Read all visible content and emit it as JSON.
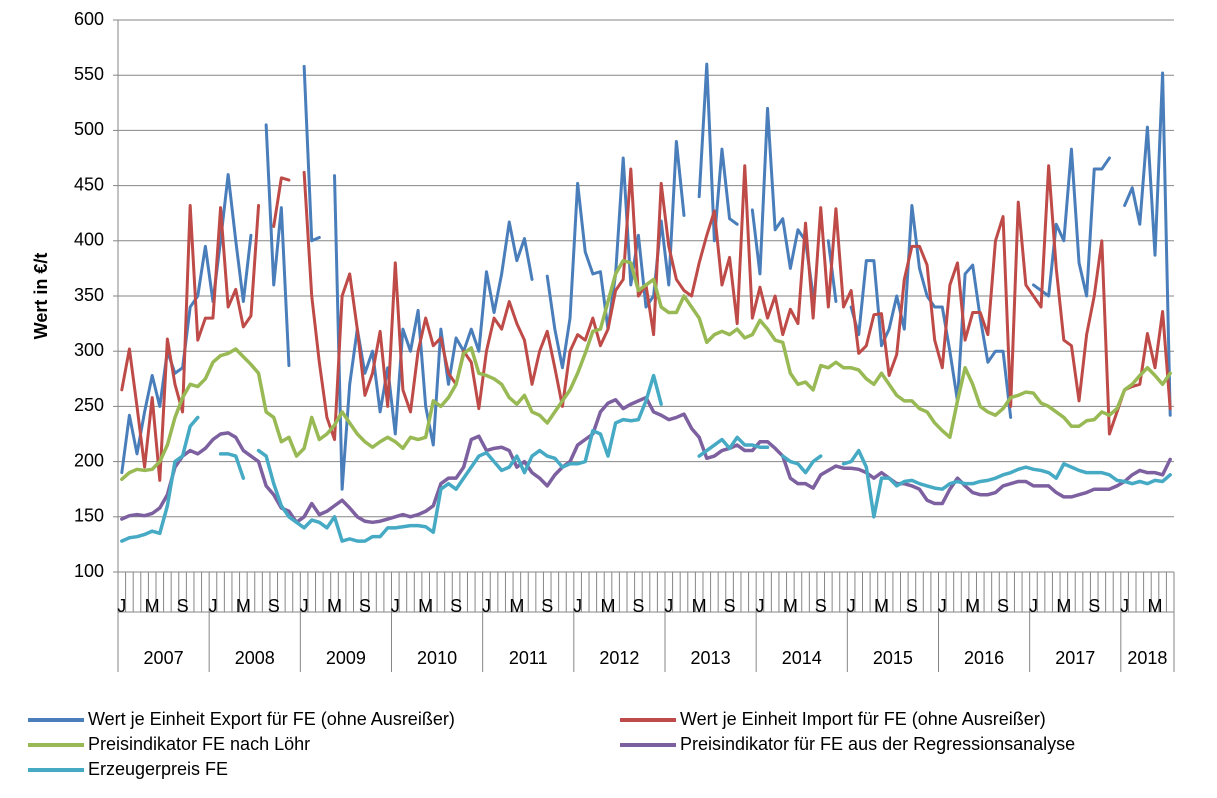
{
  "chart_data": {
    "type": "line",
    "y_label": "Wert  in €/t",
    "ylim": [
      100,
      600
    ],
    "yticks": [
      100,
      150,
      200,
      250,
      300,
      350,
      400,
      450,
      500,
      550,
      600
    ],
    "grid": true,
    "legend": "bottom",
    "categories": [
      "J",
      null,
      null,
      null,
      "M",
      null,
      null,
      null,
      "S",
      null,
      null,
      null,
      "J",
      null,
      null,
      null,
      "M",
      null,
      null,
      null,
      "S",
      null,
      null,
      null,
      "J",
      null,
      null,
      null,
      "M",
      null,
      null,
      null,
      "S",
      null,
      null,
      null,
      "J",
      null,
      null,
      null,
      "M",
      null,
      null,
      null,
      "S",
      null,
      null,
      null,
      "J",
      null,
      null,
      null,
      "M",
      null,
      null,
      null,
      "S",
      null,
      null,
      null,
      "J",
      null,
      null,
      null,
      "M",
      null,
      null,
      null,
      "S",
      null,
      null,
      null,
      "J",
      null,
      null,
      null,
      "M",
      null,
      null,
      null,
      "S",
      null,
      null,
      null,
      "J",
      null,
      null,
      null,
      "M",
      null,
      null,
      null,
      "S",
      null,
      null,
      null,
      "J",
      null,
      null,
      null,
      "M",
      null,
      null,
      null,
      "S",
      null,
      null,
      null,
      "J",
      null,
      null,
      null,
      "M",
      null,
      null,
      null,
      "S",
      null,
      null,
      null,
      "J",
      null,
      null,
      null,
      "M",
      null,
      null,
      null,
      "S",
      null,
      null,
      null,
      "J",
      null,
      null,
      null,
      "M",
      null,
      null
    ],
    "years": [
      "2007",
      "2008",
      "2009",
      "2010",
      "2011",
      "2012",
      "2013",
      "2014",
      "2015",
      "2016",
      "2017",
      "2018"
    ],
    "series": [
      {
        "name": "Wert je Einheit Export für FE (ohne Ausreißer)",
        "color": "#4a7ebb",
        "values": [
          190,
          242,
          207,
          245,
          278,
          250,
          300,
          280,
          285,
          340,
          350,
          395,
          345,
          400,
          460,
          400,
          345,
          405,
          null,
          505,
          360,
          430,
          287,
          null,
          558,
          400,
          403,
          null,
          459,
          175,
          270,
          320,
          280,
          300,
          245,
          285,
          225,
          320,
          300,
          337,
          250,
          215,
          320,
          270,
          312,
          300,
          320,
          300,
          372,
          335,
          370,
          417,
          382,
          402,
          365,
          null,
          368,
          320,
          285,
          330,
          452,
          390,
          370,
          372,
          320,
          370,
          475,
          360,
          405,
          340,
          350,
          418,
          360,
          490,
          423,
          null,
          440,
          560,
          400,
          483,
          420,
          415,
          null,
          428,
          370,
          520,
          410,
          420,
          375,
          410,
          400,
          350,
          null,
          400,
          345,
          null,
          340,
          315,
          382,
          382,
          305,
          320,
          350,
          320,
          432,
          375,
          350,
          340,
          340,
          300,
          255,
          370,
          378,
          330,
          290,
          300,
          300,
          240,
          null,
          null,
          360,
          355,
          350,
          415,
          400,
          483,
          380,
          350,
          465,
          465,
          475,
          null,
          432,
          448,
          415,
          503,
          387,
          552,
          242
        ]
      },
      {
        "name": "Wert je Einheit Import für FE (ohne Ausreißer)",
        "color": "#be4b48",
        "values": [
          265,
          302,
          250,
          195,
          258,
          183,
          311,
          270,
          245,
          432,
          310,
          330,
          330,
          430,
          340,
          356,
          322,
          332,
          432,
          null,
          413,
          457,
          455,
          null,
          462,
          350,
          290,
          240,
          220,
          350,
          370,
          320,
          260,
          280,
          318,
          250,
          380,
          265,
          245,
          300,
          330,
          305,
          312,
          280,
          270,
          300,
          290,
          248,
          300,
          330,
          320,
          345,
          325,
          310,
          270,
          300,
          318,
          285,
          250,
          300,
          315,
          310,
          330,
          305,
          320,
          355,
          365,
          465,
          350,
          360,
          315,
          452,
          395,
          365,
          355,
          350,
          380,
          405,
          427,
          360,
          385,
          325,
          468,
          330,
          358,
          330,
          350,
          315,
          338,
          325,
          416,
          330,
          430,
          340,
          429,
          340,
          355,
          298,
          305,
          333,
          334,
          278,
          297,
          365,
          395,
          395,
          378,
          310,
          285,
          360,
          380,
          310,
          335,
          335,
          315,
          400,
          422,
          250,
          435,
          360,
          350,
          340,
          468,
          375,
          310,
          305,
          255,
          315,
          350,
          400,
          225,
          245,
          265,
          268,
          270,
          316,
          285,
          336,
          248
        ]
      },
      {
        "name": "Preisindikator FE nach Löhr",
        "color": "#98b954",
        "values": [
          184,
          190,
          193,
          192,
          193,
          200,
          215,
          240,
          258,
          270,
          268,
          275,
          290,
          296,
          298,
          302,
          295,
          288,
          280,
          245,
          240,
          218,
          222,
          205,
          212,
          240,
          220,
          225,
          233,
          245,
          235,
          225,
          218,
          213,
          218,
          222,
          218,
          212,
          222,
          220,
          222,
          255,
          250,
          258,
          270,
          298,
          303,
          280,
          278,
          275,
          270,
          258,
          252,
          260,
          245,
          242,
          235,
          245,
          255,
          265,
          280,
          298,
          318,
          320,
          345,
          370,
          382,
          380,
          355,
          360,
          365,
          340,
          335,
          335,
          350,
          340,
          330,
          308,
          315,
          318,
          315,
          320,
          312,
          315,
          328,
          320,
          310,
          308,
          280,
          270,
          272,
          265,
          287,
          285,
          290,
          285,
          285,
          283,
          275,
          270,
          280,
          270,
          260,
          255,
          255,
          248,
          245,
          235,
          228,
          222,
          255,
          285,
          270,
          250,
          245,
          242,
          248,
          258,
          260,
          263,
          262,
          253,
          250,
          245,
          240,
          232,
          232,
          237,
          238,
          245,
          242,
          248,
          265,
          270,
          278,
          285,
          278,
          270,
          280
        ]
      },
      {
        "name": "Preisindikator für FE aus der Regressionsanalyse",
        "color": "#7d60a0",
        "values": [
          148,
          151,
          152,
          151,
          153,
          158,
          170,
          195,
          205,
          210,
          207,
          212,
          220,
          225,
          226,
          222,
          210,
          205,
          200,
          178,
          170,
          158,
          155,
          145,
          150,
          162,
          152,
          155,
          160,
          165,
          158,
          150,
          146,
          145,
          146,
          148,
          150,
          152,
          150,
          152,
          155,
          160,
          180,
          185,
          185,
          195,
          220,
          223,
          210,
          212,
          213,
          210,
          195,
          200,
          190,
          185,
          178,
          188,
          195,
          200,
          215,
          220,
          225,
          245,
          253,
          256,
          248,
          252,
          255,
          258,
          245,
          242,
          238,
          240,
          243,
          230,
          222,
          203,
          205,
          210,
          212,
          215,
          210,
          210,
          218,
          218,
          212,
          205,
          185,
          180,
          180,
          176,
          188,
          192,
          196,
          194,
          194,
          193,
          190,
          185,
          190,
          185,
          180,
          180,
          178,
          175,
          165,
          162,
          162,
          175,
          185,
          178,
          172,
          170,
          170,
          172,
          178,
          180,
          182,
          182,
          178,
          178,
          178,
          172,
          168,
          168,
          170,
          172,
          175,
          175,
          175,
          178,
          182,
          188,
          192,
          190,
          190,
          188,
          202
        ]
      },
      {
        "name": "Erzeugerpreis FE",
        "color": "#46aac5",
        "values": [
          128,
          131,
          132,
          134,
          137,
          135,
          160,
          200,
          205,
          232,
          240,
          null,
          null,
          207,
          207,
          205,
          185,
          null,
          210,
          205,
          180,
          160,
          150,
          145,
          140,
          147,
          145,
          140,
          150,
          128,
          130,
          128,
          128,
          132,
          132,
          140,
          140,
          141,
          142,
          142,
          141,
          136,
          175,
          180,
          175,
          185,
          195,
          205,
          208,
          200,
          192,
          195,
          205,
          190,
          205,
          210,
          205,
          203,
          195,
          198,
          198,
          200,
          228,
          225,
          205,
          235,
          238,
          237,
          238,
          255,
          278,
          252,
          null,
          null,
          null,
          null,
          205,
          210,
          215,
          220,
          212,
          222,
          215,
          215,
          213,
          213,
          null,
          205,
          200,
          198,
          190,
          200,
          205,
          null,
          null,
          198,
          200,
          210,
          195,
          150,
          185,
          185,
          178,
          182,
          183,
          180,
          178,
          176,
          175,
          180,
          182,
          180,
          180,
          182,
          183,
          185,
          188,
          190,
          193,
          195,
          193,
          192,
          190,
          185,
          198,
          195,
          192,
          190,
          190,
          190,
          188,
          183,
          182,
          180,
          182,
          180,
          183,
          182,
          188
        ]
      }
    ]
  }
}
